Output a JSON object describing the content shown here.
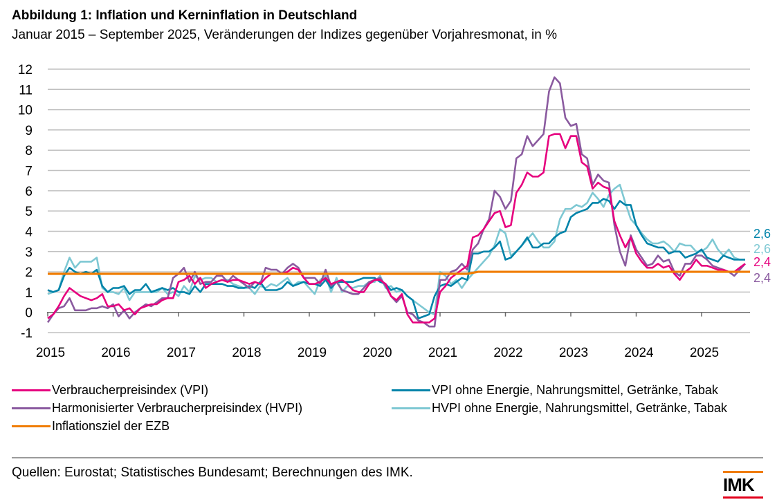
{
  "title": "Abbildung 1: Inflation und Kerninflation in Deutschland",
  "subtitle": "Januar 2015 – September 2025, Veränderungen der Indizes gegenüber Vorjahresmonat, in %",
  "source": "Quellen: Eurostat; Statistisches Bundesamt; Berechnungen des IMK.",
  "logo": "IMK",
  "chart_data": {
    "type": "line",
    "title": "Inflation und Kerninflation in Deutschland",
    "xlabel": "",
    "ylabel": "%",
    "x_start": "2015-01",
    "x_end": "2025-09",
    "frequency": "monthly",
    "ylim": [
      -1,
      12
    ],
    "yticks": [
      "-1",
      "0",
      "1",
      "2",
      "3",
      "4",
      "5",
      "6",
      "7",
      "8",
      "9",
      "10",
      "11",
      "12"
    ],
    "xticks": [
      "2015",
      "2016",
      "2017",
      "2018",
      "2019",
      "2020",
      "2021",
      "2022",
      "2023",
      "2024",
      "2025"
    ],
    "grid": true,
    "legend_position": "bottom",
    "end_labels": [
      {
        "series": "VPI ohne Energie, Nahrungsmittel, Getränke, Tabak",
        "text": "2,6"
      },
      {
        "series": "HVPI ohne Energie, Nahrungsmittel, Getränke, Tabak",
        "text": "2,6"
      },
      {
        "series": "Verbraucherpreisindex (VPI)",
        "text": "2,4"
      },
      {
        "series": "Harmonisierter Verbraucherpreisindex (HVPI)",
        "text": "2,4"
      }
    ],
    "series": [
      {
        "name": "Verbraucherpreisindex (VPI)",
        "color": "#e6007e",
        "values": [
          -0.3,
          -0.1,
          0.3,
          0.8,
          1.2,
          1.0,
          0.8,
          0.7,
          0.6,
          0.7,
          0.9,
          0.3,
          0.3,
          0.4,
          0.1,
          0.2,
          -0.1,
          0.2,
          0.3,
          0.4,
          0.4,
          0.6,
          0.7,
          0.7,
          1.5,
          1.6,
          1.8,
          1.4,
          1.7,
          1.2,
          1.4,
          1.5,
          1.6,
          1.5,
          1.6,
          1.6,
          1.5,
          1.4,
          1.5,
          1.4,
          1.7,
          1.9,
          1.9,
          1.9,
          2.0,
          2.2,
          2.1,
          1.7,
          1.4,
          1.4,
          1.5,
          1.7,
          1.4,
          1.5,
          1.6,
          1.4,
          1.1,
          1.0,
          1.0,
          1.4,
          1.6,
          1.6,
          1.4,
          0.8,
          0.6,
          0.9,
          -0.1,
          -0.5,
          -0.5,
          -0.5,
          -0.5,
          -0.3,
          1.0,
          1.3,
          1.7,
          1.9,
          2.1,
          2.3,
          3.7,
          3.8,
          4.1,
          4.5,
          4.9,
          5.0,
          4.2,
          4.3,
          5.9,
          6.3,
          6.9,
          6.7,
          6.7,
          6.9,
          8.7,
          8.8,
          8.8,
          8.1,
          8.7,
          8.7,
          7.4,
          7.2,
          6.1,
          6.4,
          6.2,
          6.1,
          4.5,
          3.8,
          3.2,
          3.7,
          2.9,
          2.5,
          2.2,
          2.2,
          2.4,
          2.2,
          2.3,
          1.9,
          1.6,
          2.0,
          2.2,
          2.6,
          2.3,
          2.3,
          2.2,
          2.1,
          2.1,
          2.0,
          2.0,
          2.2,
          2.4
        ]
      },
      {
        "name": "Harmonisierter Verbraucherpreisindex (HVPI)",
        "color": "#8a5a9f",
        "values": [
          -0.5,
          -0.1,
          0.2,
          0.3,
          0.7,
          0.1,
          0.1,
          0.1,
          0.2,
          0.2,
          0.3,
          0.2,
          0.4,
          -0.2,
          0.1,
          -0.3,
          0.0,
          0.2,
          0.4,
          0.3,
          0.5,
          0.7,
          0.7,
          1.7,
          1.9,
          2.2,
          1.5,
          2.0,
          1.4,
          1.5,
          1.5,
          1.8,
          1.8,
          1.5,
          1.8,
          1.6,
          1.4,
          1.2,
          1.5,
          1.4,
          2.2,
          2.1,
          2.1,
          1.9,
          2.2,
          2.4,
          2.2,
          1.7,
          1.7,
          1.7,
          1.4,
          2.1,
          1.3,
          1.5,
          1.1,
          1.0,
          0.9,
          0.9,
          1.2,
          1.5,
          1.6,
          1.7,
          1.3,
          0.8,
          0.5,
          0.8,
          0.0,
          -0.1,
          -0.4,
          -0.5,
          -0.7,
          -0.7,
          1.6,
          1.6,
          2.0,
          2.1,
          2.4,
          2.1,
          3.1,
          3.4,
          4.1,
          4.6,
          6.0,
          5.7,
          5.1,
          5.5,
          7.6,
          7.8,
          8.7,
          8.2,
          8.5,
          8.8,
          10.9,
          11.6,
          11.3,
          9.6,
          9.2,
          9.3,
          7.8,
          7.6,
          6.3,
          6.8,
          6.5,
          6.4,
          4.3,
          3.0,
          2.3,
          3.8,
          3.1,
          2.7,
          2.3,
          2.4,
          2.8,
          2.5,
          2.6,
          2.0,
          1.8,
          2.4,
          2.4,
          2.8,
          2.8,
          2.6,
          2.3,
          2.2,
          2.1,
          2.0,
          1.8,
          2.1,
          2.4
        ]
      },
      {
        "name": "VPI ohne Energie, Nahrungsmittel, Getränke, Tabak",
        "color": "#0083a9",
        "values": [
          1.1,
          1.0,
          1.1,
          1.8,
          2.2,
          2.0,
          1.9,
          2.0,
          1.9,
          2.1,
          1.3,
          1.0,
          1.2,
          1.2,
          1.3,
          0.9,
          1.1,
          1.1,
          1.4,
          1.0,
          1.1,
          1.2,
          1.1,
          1.2,
          1.0,
          1.0,
          0.9,
          1.3,
          1.0,
          1.4,
          1.4,
          1.4,
          1.4,
          1.3,
          1.3,
          1.2,
          1.2,
          1.3,
          1.2,
          1.5,
          1.1,
          1.1,
          1.1,
          1.2,
          1.5,
          1.3,
          1.4,
          1.5,
          1.4,
          1.4,
          1.3,
          1.6,
          1.2,
          1.5,
          1.5,
          1.5,
          1.5,
          1.6,
          1.7,
          1.7,
          1.7,
          1.5,
          1.4,
          1.1,
          1.2,
          1.1,
          0.8,
          0.6,
          -0.3,
          -0.2,
          -0.1,
          0.8,
          1.3,
          1.4,
          1.3,
          1.5,
          1.7,
          1.6,
          2.9,
          2.9,
          3.0,
          3.0,
          3.2,
          3.5,
          2.6,
          2.7,
          3.0,
          3.3,
          3.7,
          3.2,
          3.2,
          3.4,
          3.4,
          3.7,
          3.9,
          4.0,
          4.7,
          4.9,
          5.0,
          5.1,
          5.4,
          5.4,
          5.6,
          5.5,
          5.1,
          5.5,
          5.3,
          5.3,
          4.3,
          3.8,
          3.4,
          3.3,
          3.2,
          3.2,
          2.9,
          3.0,
          3.0,
          2.7,
          2.8,
          2.9,
          3.1,
          2.7,
          2.6,
          2.5,
          2.8,
          2.7,
          2.6,
          2.6,
          2.6
        ]
      },
      {
        "name": "HVPI ohne Energie, Nahrungsmittel, Getränke, Tabak",
        "color": "#7ec8d3",
        "values": [
          0.9,
          1.0,
          1.1,
          2.0,
          2.7,
          2.2,
          2.5,
          2.5,
          2.5,
          2.7,
          1.2,
          1.0,
          1.0,
          0.9,
          1.2,
          0.6,
          1.0,
          1.0,
          1.0,
          1.0,
          1.0,
          1.2,
          0.9,
          1.0,
          0.8,
          1.3,
          1.0,
          1.8,
          1.6,
          1.7,
          1.7,
          1.5,
          1.6,
          1.6,
          1.4,
          1.3,
          1.2,
          1.2,
          0.9,
          1.3,
          1.2,
          1.4,
          1.3,
          1.5,
          1.7,
          1.3,
          1.5,
          1.5,
          1.2,
          0.9,
          1.6,
          1.8,
          1.0,
          1.7,
          1.0,
          1.3,
          1.2,
          1.3,
          1.3,
          1.5,
          1.5,
          1.8,
          1.2,
          1.3,
          1.0,
          1.1,
          0.8,
          0.6,
          0.4,
          0.2,
          0.0,
          -0.1,
          2.0,
          1.8,
          1.4,
          1.6,
          1.2,
          1.6,
          1.9,
          2.2,
          2.5,
          2.8,
          3.3,
          4.1,
          3.9,
          2.8,
          3.0,
          3.3,
          3.6,
          3.9,
          3.5,
          3.2,
          3.2,
          3.5,
          4.6,
          5.1,
          5.1,
          5.3,
          5.2,
          5.4,
          5.9,
          5.6,
          5.2,
          5.8,
          6.1,
          6.3,
          5.4,
          4.6,
          4.3,
          3.9,
          3.6,
          3.4,
          3.4,
          3.5,
          3.3,
          3.0,
          3.4,
          3.3,
          3.3,
          3.0,
          3.0,
          3.2,
          3.6,
          3.1,
          2.8,
          3.1,
          2.7,
          2.6,
          2.6
        ]
      },
      {
        "name": "Inflationsziel der EZB",
        "color": "#f07c00",
        "values_note": "horizontal target line",
        "constant_segments": [
          {
            "from": "2015-01",
            "to": "2021-06",
            "value": 1.9
          },
          {
            "from": "2021-08",
            "to": "2025-09",
            "value": 2.0
          }
        ]
      }
    ]
  },
  "legend": {
    "left": [
      {
        "label": "Verbraucherpreisindex (VPI)",
        "color": "#e6007e"
      },
      {
        "label": "Harmonisierter Verbraucherpreisindex (HVPI)",
        "color": "#8a5a9f"
      },
      {
        "label": "Inflationsziel der EZB",
        "color": "#f07c00"
      }
    ],
    "right": [
      {
        "label": "VPI ohne Energie, Nahrungsmittel, Getränke, Tabak",
        "color": "#0083a9"
      },
      {
        "label": "HVPI ohne Energie, Nahrungsmittel, Getränke, Tabak",
        "color": "#7ec8d3"
      }
    ]
  }
}
